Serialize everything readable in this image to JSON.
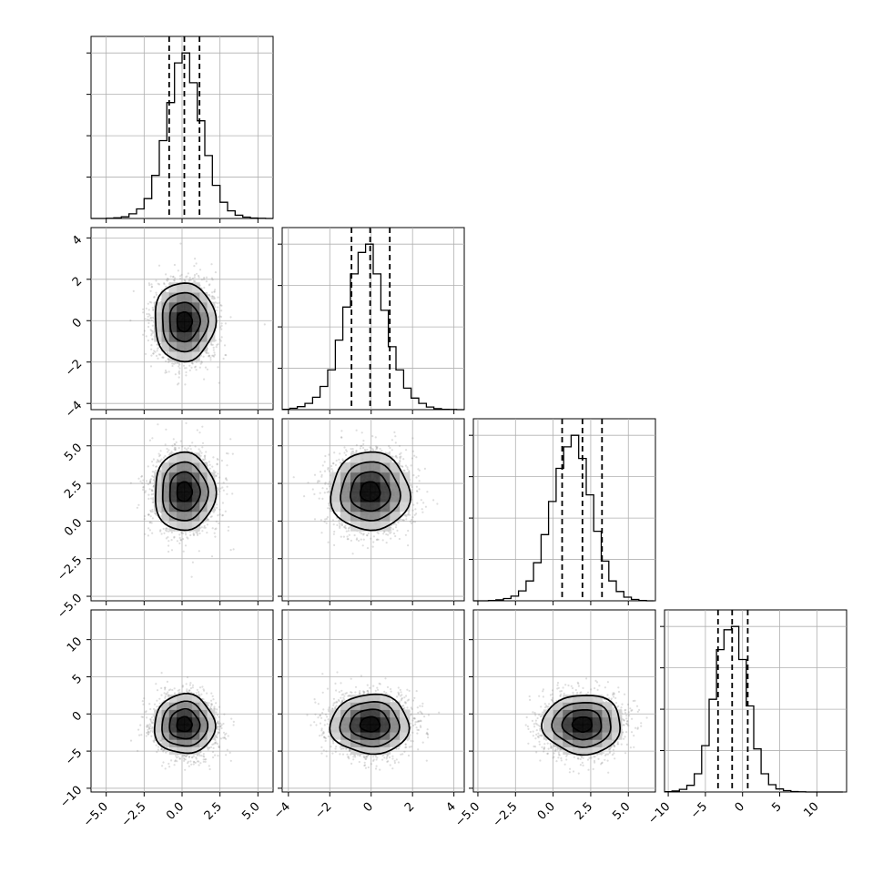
{
  "chart_data": {
    "type": "corner",
    "title": "",
    "parameters": [
      {
        "range": [
          -6.0,
          6.0
        ],
        "ticks": [
          -5.0,
          -2.5,
          0.0,
          2.5,
          5.0
        ],
        "tick_labels": [
          "−5.0",
          "−2.5",
          "0.0",
          "2.5",
          "5.0"
        ],
        "mean": 0.15,
        "sd": 1.0,
        "quantiles": [
          -0.85,
          0.15,
          1.15
        ]
      },
      {
        "range": [
          -4.3,
          4.5
        ],
        "ticks": [
          -4,
          -2,
          0,
          2,
          4
        ],
        "tick_labels": [
          "−4",
          "−2",
          "0",
          "2",
          "4"
        ],
        "mean": -0.05,
        "sd": 0.95,
        "quantiles": [
          -0.95,
          -0.05,
          0.9
        ]
      },
      {
        "range": [
          -5.3,
          6.8
        ],
        "ticks": [
          -5.0,
          -2.5,
          0.0,
          2.5,
          5.0
        ],
        "tick_labels": [
          "−5.0",
          "−2.5",
          "0.0",
          "2.5",
          "5.0"
        ],
        "mean": 1.95,
        "sd": 1.3,
        "quantiles": [
          0.6,
          1.95,
          3.25
        ]
      },
      {
        "range": [
          -10.5,
          14.0
        ],
        "ticks": [
          -10,
          -5,
          0,
          5,
          10
        ],
        "tick_labels": [
          "−10",
          "−5",
          "0",
          "5",
          "10"
        ],
        "mean": -1.4,
        "sd": 2.0,
        "quantiles": [
          -3.3,
          -1.4,
          0.7
        ]
      }
    ],
    "histograms": [
      {
        "bins": [
          -6.0,
          -5.5,
          -5.0,
          -4.5,
          -4.0,
          -3.5,
          -3.0,
          -2.5,
          -2.0,
          -1.5,
          -1.0,
          -0.5,
          0.0,
          0.5,
          1.0,
          1.5,
          2.0,
          2.5,
          3.0,
          3.5,
          4.0,
          4.5,
          5.0,
          5.5,
          6.0
        ],
        "counts": [
          0,
          0,
          1,
          4,
          10,
          28,
          58,
          120,
          260,
          470,
          700,
          940,
          1000,
          820,
          590,
          380,
          200,
          98,
          46,
          20,
          8,
          3,
          1,
          0
        ]
      },
      {
        "bins": [
          -4.3,
          -3.93,
          -3.57,
          -3.2,
          -2.83,
          -2.47,
          -2.1,
          -1.73,
          -1.37,
          -1.0,
          -0.63,
          -0.27,
          0.1,
          0.47,
          0.83,
          1.2,
          1.57,
          1.93,
          2.3,
          2.67,
          3.03,
          3.4,
          3.77,
          4.13,
          4.5
        ],
        "counts": [
          2,
          8,
          18,
          38,
          75,
          140,
          240,
          420,
          620,
          820,
          950,
          1000,
          820,
          600,
          380,
          240,
          130,
          70,
          38,
          16,
          6,
          2,
          1,
          0
        ]
      },
      {
        "bins": [
          -5.3,
          -4.8,
          -4.3,
          -3.8,
          -3.3,
          -2.8,
          -2.3,
          -1.8,
          -1.3,
          -0.8,
          -0.3,
          0.2,
          0.7,
          1.2,
          1.7,
          2.2,
          2.7,
          3.2,
          3.7,
          4.2,
          4.7,
          5.2,
          5.7,
          6.2,
          6.7
        ],
        "counts": [
          0,
          0,
          2,
          6,
          14,
          28,
          60,
          120,
          230,
          400,
          600,
          800,
          930,
          1000,
          860,
          640,
          420,
          240,
          120,
          56,
          22,
          8,
          2,
          0
        ]
      },
      {
        "bins": [
          -10.5,
          -9.5,
          -8.5,
          -7.5,
          -6.5,
          -5.5,
          -4.5,
          -3.5,
          -2.5,
          -1.5,
          -0.5,
          0.5,
          1.5,
          2.5,
          3.5,
          4.5,
          5.5,
          6.5,
          7.5,
          8.5,
          9.5,
          10.5,
          11.5,
          12.5,
          13.5
        ],
        "counts": [
          2,
          6,
          16,
          40,
          110,
          280,
          560,
          860,
          980,
          1000,
          800,
          520,
          260,
          110,
          44,
          18,
          8,
          3,
          1,
          0,
          0,
          0,
          0,
          0
        ]
      }
    ]
  }
}
